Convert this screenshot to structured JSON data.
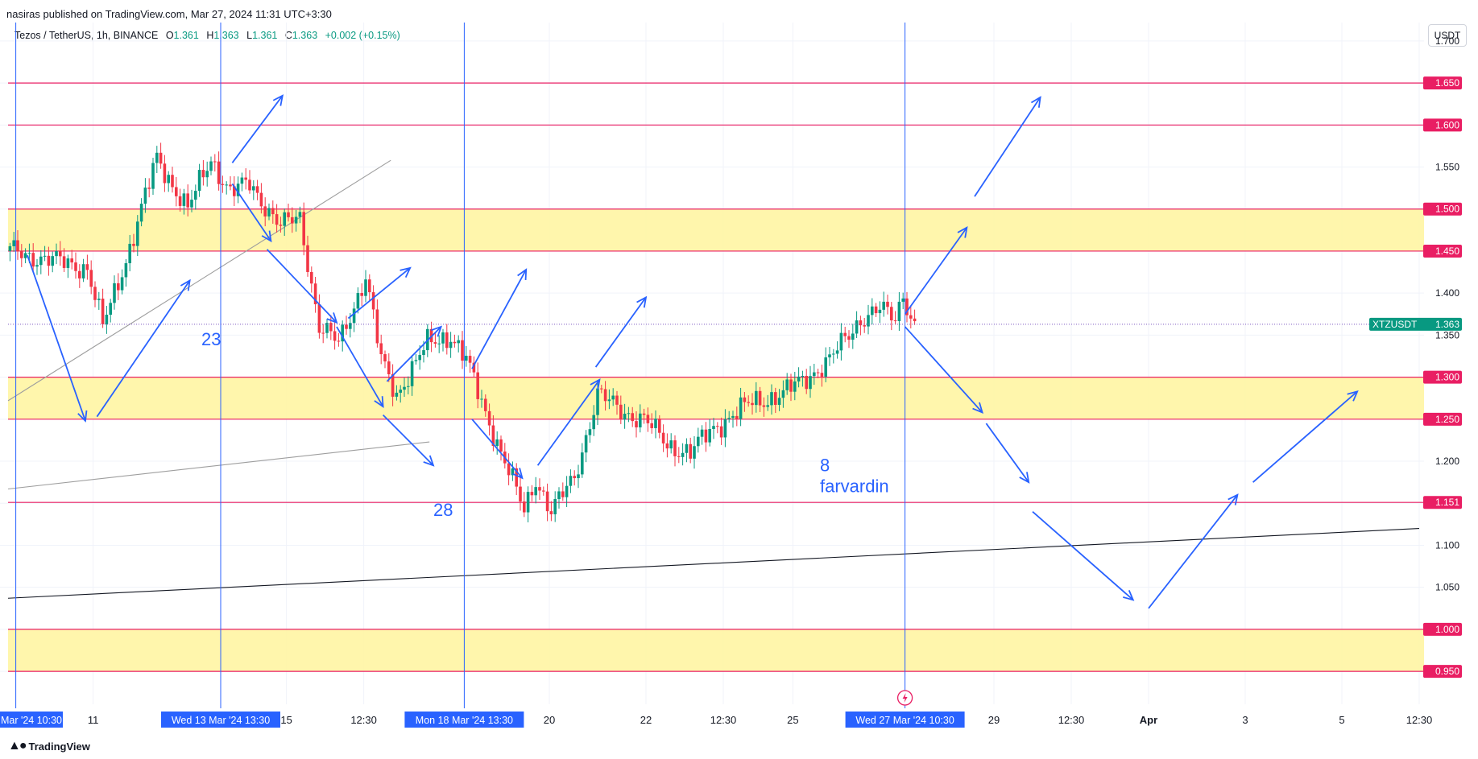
{
  "header": {
    "published": "nasiras published on TradingView.com, Mar 27, 2024 11:31 UTC+3:30"
  },
  "symbol": {
    "name": "Tezos / TetherUS, 1h, BINANCE",
    "open_label": "O",
    "open": "1.361",
    "high_label": "H",
    "high": "1.363",
    "low_label": "L",
    "low": "1.361",
    "close_label": "C",
    "close": "1.363",
    "change": "+0.002 (+0.15%)"
  },
  "currency_button": "USDT",
  "footer": {
    "brand": "TradingView"
  },
  "colors": {
    "up": "#089981",
    "down": "#f23645",
    "level": "#e91e63",
    "zone": "#fff59d",
    "arrow": "#2962ff",
    "vline": "#2962ff"
  },
  "chart_data": {
    "type": "candlestick",
    "symbol": "XTZUSDT",
    "timeframe": "1h",
    "y_ticks": [
      "1.700",
      "1.550",
      "1.400",
      "1.350",
      "1.200",
      "1.100",
      "1.050"
    ],
    "ylim": [
      0.93,
      1.72
    ],
    "x_ticks": [
      {
        "label": "11",
        "idx": 22
      },
      {
        "label": "15",
        "idx": 72
      },
      {
        "label": "12:30",
        "idx": 92
      },
      {
        "label": "20",
        "idx": 140
      },
      {
        "label": "22",
        "idx": 165
      },
      {
        "label": "12:30",
        "idx": 185
      },
      {
        "label": "25",
        "idx": 203
      },
      {
        "label": "29",
        "idx": 255
      },
      {
        "label": "12:30",
        "idx": 275
      },
      {
        "label": "Apr",
        "idx": 295
      },
      {
        "label": "3",
        "idx": 320
      },
      {
        "label": "5",
        "idx": 345
      },
      {
        "label": "12:30",
        "idx": 365
      }
    ],
    "time_markers": [
      {
        "label": "Mar '24  10:30",
        "idx": 2,
        "edge": true
      },
      {
        "label": "Wed 13 Mar '24  13:30",
        "idx": 55
      },
      {
        "label": "Mon 18 Mar '24  13:30",
        "idx": 118
      },
      {
        "label": "Wed 27 Mar '24  10:30",
        "idx": 232
      }
    ],
    "price_levels": [
      {
        "label": "1.650",
        "value": 1.65
      },
      {
        "label": "1.600",
        "value": 1.6
      },
      {
        "label": "1.500",
        "value": 1.5
      },
      {
        "label": "1.450",
        "value": 1.45
      },
      {
        "label": "1.300",
        "value": 1.3
      },
      {
        "label": "1.250",
        "value": 1.25
      },
      {
        "label": "1.151",
        "value": 1.151
      },
      {
        "label": "1.000",
        "value": 1.0
      },
      {
        "label": "0.950",
        "value": 0.95
      }
    ],
    "zones": [
      {
        "from": 1.45,
        "to": 1.5
      },
      {
        "from": 1.25,
        "to": 1.3
      },
      {
        "from": 0.95,
        "to": 1.0
      }
    ],
    "current_price": {
      "label": "XTZUSDT",
      "value": "1.363",
      "price": 1.363
    },
    "annotations": [
      {
        "text": "23",
        "idx": 50,
        "price": 1.338
      },
      {
        "text": "28",
        "idx": 110,
        "price": 1.135
      },
      {
        "text": "8",
        "idx": 210,
        "price": 1.188
      },
      {
        "text": "farvardin",
        "idx": 210,
        "price": 1.163
      }
    ],
    "trend_lines": [
      {
        "from": [
          0,
          1.272
        ],
        "to": [
          99,
          1.558
        ],
        "color": "#9e9e9e"
      },
      {
        "from": [
          0,
          1.167
        ],
        "to": [
          109,
          1.223
        ],
        "color": "#9e9e9e"
      },
      {
        "from": [
          0,
          1.037
        ],
        "to": [
          365,
          1.12
        ],
        "color": "#131722"
      }
    ],
    "arrows": [
      [
        [
          5,
          1.445
        ],
        [
          20,
          1.248
        ]
      ],
      [
        [
          23,
          1.253
        ],
        [
          47,
          1.415
        ]
      ],
      [
        [
          58,
          1.555
        ],
        [
          71,
          1.635
        ]
      ],
      [
        [
          58,
          1.53
        ],
        [
          68,
          1.462
        ]
      ],
      [
        [
          67,
          1.452
        ],
        [
          85,
          1.365
        ]
      ],
      [
        [
          85,
          1.36
        ],
        [
          97,
          1.265
        ]
      ],
      [
        [
          88,
          1.37
        ],
        [
          104,
          1.43
        ]
      ],
      [
        [
          97,
          1.255
        ],
        [
          110,
          1.195
        ]
      ],
      [
        [
          98,
          1.295
        ],
        [
          112,
          1.36
        ]
      ],
      [
        [
          120,
          1.31
        ],
        [
          134,
          1.428
        ]
      ],
      [
        [
          120,
          1.25
        ],
        [
          133,
          1.18
        ]
      ],
      [
        [
          137,
          1.195
        ],
        [
          153,
          1.297
        ]
      ],
      [
        [
          152,
          1.312
        ],
        [
          165,
          1.395
        ]
      ],
      [
        [
          250,
          1.515
        ],
        [
          267,
          1.633
        ]
      ],
      [
        [
          232,
          1.375
        ],
        [
          248,
          1.478
        ]
      ],
      [
        [
          232,
          1.36
        ],
        [
          252,
          1.258
        ]
      ],
      [
        [
          253,
          1.245
        ],
        [
          264,
          1.175
        ]
      ],
      [
        [
          265,
          1.14
        ],
        [
          291,
          1.035
        ]
      ],
      [
        [
          295,
          1.025
        ],
        [
          318,
          1.16
        ]
      ],
      [
        [
          322,
          1.175
        ],
        [
          349,
          1.283
        ]
      ]
    ]
  }
}
